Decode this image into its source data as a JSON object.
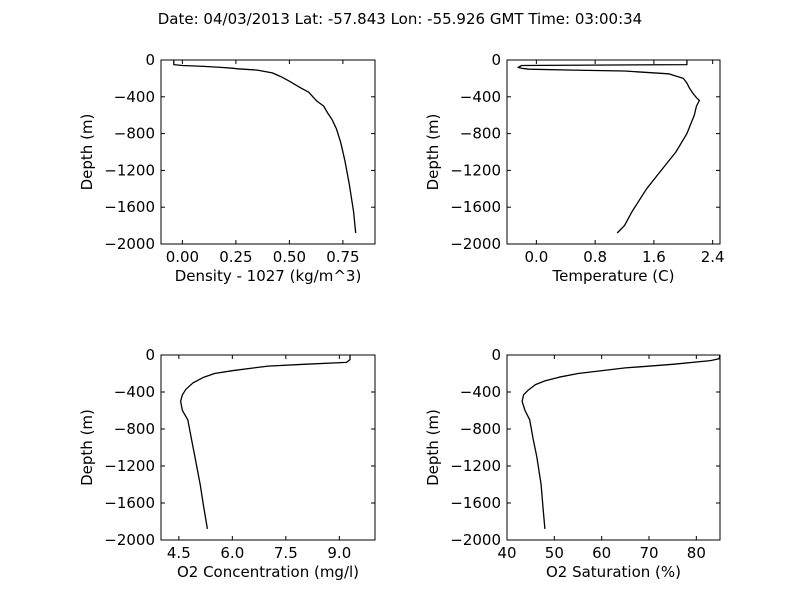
{
  "figure": {
    "title": "Date: 04/03/2013  Lat:  -57.843 Lon:  -55.926  GMT Time: 03:00:34"
  },
  "chart_data": [
    {
      "type": "line",
      "id": "density",
      "xlabel": "Density - 1027 (kg/m^3)",
      "ylabel": "Depth (m)",
      "xlim": [
        -0.1,
        0.9
      ],
      "ylim": [
        -2000,
        0
      ],
      "xticks": [
        0.0,
        0.25,
        0.5,
        0.75
      ],
      "xtick_labels": [
        "0.00",
        "0.25",
        "0.50",
        "0.75"
      ],
      "yticks": [
        0,
        -400,
        -800,
        -1200,
        -1600,
        -2000
      ],
      "ytick_labels": [
        "0",
        "−400",
        "−800",
        "−1200",
        "−1600",
        "−2000"
      ],
      "series": [
        {
          "x": [
            -0.04,
            -0.04,
            0.0,
            0.1,
            0.18,
            0.24,
            0.25,
            0.35,
            0.42,
            0.46,
            0.5,
            0.55,
            0.59,
            0.61,
            0.63,
            0.66,
            0.68,
            0.7,
            0.72,
            0.74,
            0.76,
            0.78,
            0.8,
            0.81
          ],
          "y": [
            0,
            -50,
            -60,
            -70,
            -80,
            -90,
            -95,
            -110,
            -140,
            -180,
            -230,
            -300,
            -350,
            -400,
            -450,
            -500,
            -580,
            -650,
            -750,
            -900,
            -1100,
            -1350,
            -1650,
            -1880
          ]
        }
      ]
    },
    {
      "type": "line",
      "id": "temperature",
      "xlabel": "Temperature (C)",
      "ylabel": "Depth (m)",
      "xlim": [
        -0.4,
        2.5
      ],
      "ylim": [
        -2000,
        0
      ],
      "xticks": [
        0.0,
        0.8,
        1.6,
        2.4
      ],
      "xtick_labels": [
        "0.0",
        "0.8",
        "1.6",
        "2.4"
      ],
      "yticks": [
        0,
        -400,
        -800,
        -1200,
        -1600,
        -2000
      ],
      "ytick_labels": [
        "0",
        "−400",
        "−800",
        "−1200",
        "−1600",
        "−2000"
      ],
      "series": [
        {
          "x": [
            2.05,
            2.05,
            -0.2,
            -0.25,
            -0.2,
            -0.1,
            0.5,
            1.2,
            1.8,
            2.0,
            2.05,
            2.08,
            2.12,
            2.15,
            2.18,
            2.22,
            2.18,
            2.15,
            2.1,
            2.05,
            1.9,
            1.7,
            1.5,
            1.3,
            1.2,
            1.1
          ],
          "y": [
            0,
            -50,
            -60,
            -80,
            -90,
            -100,
            -110,
            -120,
            -150,
            -200,
            -250,
            -300,
            -350,
            -380,
            -410,
            -440,
            -500,
            -600,
            -700,
            -800,
            -1000,
            -1200,
            -1400,
            -1650,
            -1800,
            -1880
          ]
        }
      ]
    },
    {
      "type": "line",
      "id": "o2_concentration",
      "xlabel": "O2 Concentration (mg/l)",
      "ylabel": "Depth (m)",
      "xlim": [
        4.0,
        10.0
      ],
      "ylim": [
        -2000,
        0
      ],
      "xticks": [
        4.5,
        6.0,
        7.5,
        9.0
      ],
      "xtick_labels": [
        "4.5",
        "6.0",
        "7.5",
        "9.0"
      ],
      "yticks": [
        0,
        -400,
        -800,
        -1200,
        -1600,
        -2000
      ],
      "ytick_labels": [
        "0",
        "−400",
        "−800",
        "−1200",
        "−1600",
        "−2000"
      ],
      "series": [
        {
          "x": [
            9.3,
            9.3,
            9.2,
            8.0,
            7.0,
            6.0,
            5.5,
            5.2,
            4.9,
            4.7,
            4.6,
            4.55,
            4.6,
            4.75,
            4.85,
            4.95,
            5.1,
            5.2,
            5.3
          ],
          "y": [
            0,
            -50,
            -80,
            -100,
            -120,
            -170,
            -200,
            -240,
            -300,
            -370,
            -430,
            -500,
            -600,
            -700,
            -900,
            -1100,
            -1400,
            -1650,
            -1880
          ]
        }
      ]
    },
    {
      "type": "line",
      "id": "o2_saturation",
      "xlabel": "O2 Saturation (%)",
      "ylabel": "Depth (m)",
      "xlim": [
        40,
        85
      ],
      "ylim": [
        -2000,
        0
      ],
      "xticks": [
        40,
        50,
        60,
        70,
        80
      ],
      "xtick_labels": [
        "40",
        "50",
        "60",
        "70",
        "80"
      ],
      "yticks": [
        0,
        -400,
        -800,
        -1200,
        -1600,
        -2000
      ],
      "ytick_labels": [
        "0",
        "−400",
        "−800",
        "−1200",
        "−1600",
        "−2000"
      ],
      "series": [
        {
          "x": [
            85,
            84.8,
            83,
            75,
            65,
            55,
            51,
            48,
            46,
            44.5,
            43.5,
            43.2,
            43.8,
            44.8,
            45.5,
            46.3,
            47.2,
            47.6,
            48.0
          ],
          "y": [
            0,
            -40,
            -60,
            -100,
            -140,
            -200,
            -240,
            -280,
            -320,
            -380,
            -430,
            -500,
            -600,
            -700,
            -900,
            -1100,
            -1400,
            -1650,
            -1880
          ]
        }
      ]
    }
  ]
}
